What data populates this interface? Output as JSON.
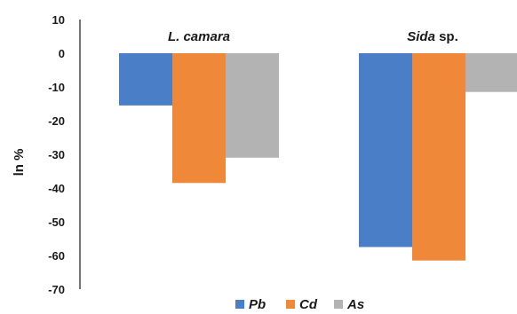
{
  "chart_data": {
    "type": "bar",
    "ylabel": "ln %",
    "ylim": [
      -70,
      10
    ],
    "yticks": [
      10,
      0,
      -10,
      -20,
      -30,
      -40,
      -50,
      -60,
      -70
    ],
    "grid": false,
    "legend_position": "bottom",
    "categories": [
      {
        "label": "L. camara",
        "italic": "L. camara",
        "rest": ""
      },
      {
        "label": "Sida sp.",
        "italic": "Sida",
        "rest": " sp."
      }
    ],
    "series": [
      {
        "name": "Pb",
        "color": "#4a7fc8",
        "values": [
          -15.5,
          -57.5
        ]
      },
      {
        "name": "Cd",
        "color": "#f0883a",
        "values": [
          -38.5,
          -61.5
        ]
      },
      {
        "name": "As",
        "color": "#b3b3b3",
        "values": [
          -31,
          -11.5
        ]
      }
    ]
  }
}
